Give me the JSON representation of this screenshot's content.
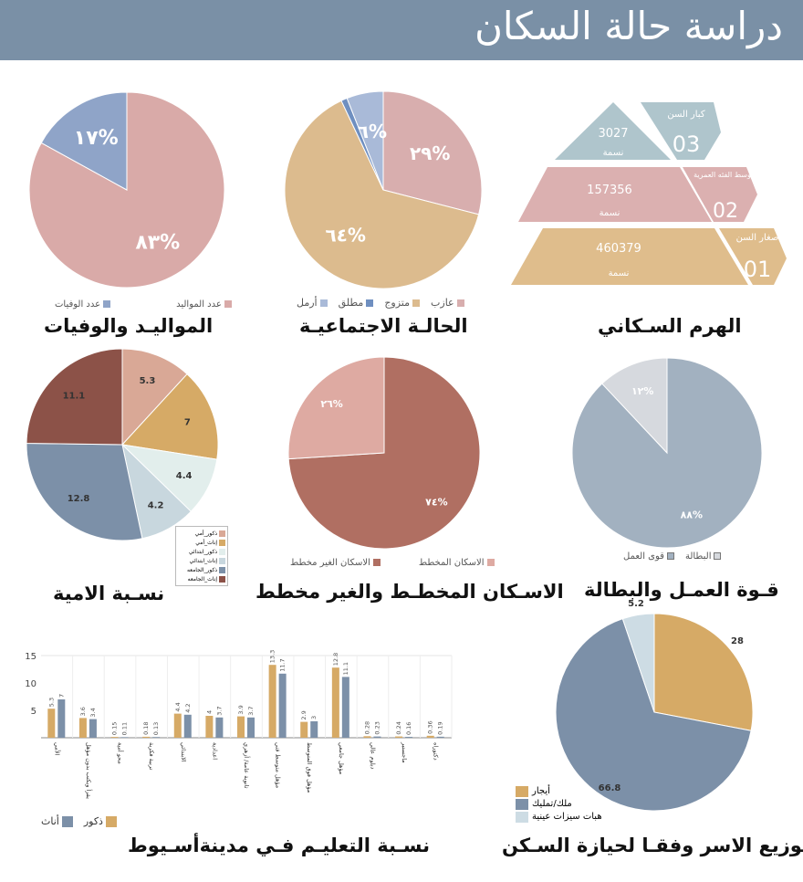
{
  "header": {
    "title": "دراسة حالة السكان"
  },
  "titles": {
    "births": "المواليـد والوفيات",
    "social": "الحالـة الاجتماعيـة",
    "pyramid": "الهرم السـكاني",
    "illiteracy": "نسـبة الامية",
    "housing": "الاسـكان المخطـط والغير مخطط",
    "labor": "قـوة العمـل والبطالة",
    "education": "نسـبة التعليـم فـي مدينةأسـيوط",
    "tenure": "توزيع الاسر وفقـا لحيازة السـكن"
  },
  "pyramid": {
    "levels": [
      {
        "number": "03",
        "name": "كبار السن",
        "value": "3027",
        "unit": "نسمة",
        "color": "#afc5cc"
      },
      {
        "number": "02",
        "name": "متوسط الفئه العمرية",
        "value": "157356",
        "unit": "نسمة",
        "color": "#dbb0b0"
      },
      {
        "number": "01",
        "name": "صغار السن",
        "value": "460379",
        "unit": "نسمة",
        "color": "#dfbd8c"
      }
    ]
  },
  "chart_data": [
    {
      "id": "births",
      "type": "pie",
      "categories": [
        "عدد المواليد",
        "عدد الوفيات"
      ],
      "values": [
        83,
        17
      ],
      "labels": [
        "٨٣%",
        "١٧%"
      ],
      "colors": [
        "#d9aaa8",
        "#8fa4c8"
      ]
    },
    {
      "id": "social",
      "type": "pie",
      "categories": [
        "عازب",
        "متزوج",
        "مطلق",
        "أرمل"
      ],
      "values": [
        29,
        64,
        1,
        6
      ],
      "labels": [
        "٢٩%",
        "٦٤%",
        "",
        "٦%"
      ],
      "colors": [
        "#d8aeae",
        "#dcbb8e",
        "#6f8fc0",
        "#a9bad8"
      ]
    },
    {
      "id": "illiteracy",
      "type": "pie",
      "categories": [
        "ذكور_أمي",
        "إناث_أمي",
        "ذكور_ابتدائي",
        "إناث_ابتدائي",
        "ذكور_الجامعه",
        "إناث_الجامعه"
      ],
      "values": [
        5.3,
        7,
        4.4,
        4.2,
        12.8,
        11.1
      ],
      "labels": [
        "5.3",
        "7",
        "4.4",
        "4.2",
        "12.8",
        "11.1"
      ],
      "colors": [
        "#d9a896",
        "#d6aa66",
        "#e2eeec",
        "#c8d7de",
        "#7c90a8",
        "#8c5248"
      ]
    },
    {
      "id": "housing",
      "type": "pie",
      "categories": [
        "الاسكان الغير مخطط",
        "الاسكان المخطط"
      ],
      "values": [
        74,
        26
      ],
      "labels": [
        "٧٤%",
        "٢٦%"
      ],
      "colors": [
        "#b06f62",
        "#deaaa2"
      ]
    },
    {
      "id": "labor",
      "type": "pie",
      "categories": [
        "قوى العمل",
        "البطالة"
      ],
      "values": [
        88,
        12
      ],
      "labels": [
        "٨٨%",
        "١٢%"
      ],
      "colors": [
        "#a2b1c0",
        "#d6d9de"
      ]
    },
    {
      "id": "tenure",
      "type": "pie",
      "categories": [
        "أيجار",
        "ملك/تمليك",
        "هبات سيزات عينية"
      ],
      "values": [
        28,
        66.8,
        5.2
      ],
      "labels": [
        "28",
        "66.8",
        "5.2"
      ],
      "colors": [
        "#d6aa66",
        "#7c90a8",
        "#cddce4"
      ]
    },
    {
      "id": "education",
      "type": "bar",
      "title": "نسـبة التعليـم فـي مدينةأسـيوط",
      "ylim": [
        0,
        15
      ],
      "yticks": [
        "5",
        "10",
        "15"
      ],
      "categories": [
        "الأمي",
        "يقرأ ويكتب بدون مؤهل",
        "محو أمية",
        "تربية فكرية",
        "الابتدائي",
        "اعدادية",
        "ثانوية عامة/ أزهري",
        "مؤهل متوسط فني",
        "مؤهل فوق المتوسط",
        "مؤهل جامعي",
        "دبلوم عالي",
        "ماجستير",
        "دكتوراه"
      ],
      "series": [
        {
          "name": "ذكور",
          "color": "#d6aa66",
          "values": [
            5.3,
            3.6,
            0.15,
            0.18,
            4.4,
            4,
            3.9,
            13.3,
            2.9,
            12.8,
            0.28,
            0.24,
            0.36
          ]
        },
        {
          "name": "أناث",
          "color": "#7c90a8",
          "values": [
            7,
            3.4,
            0.11,
            0.13,
            4.2,
            3.7,
            3.7,
            11.7,
            3,
            11.1,
            0.23,
            0.16,
            0.19
          ]
        }
      ]
    }
  ]
}
